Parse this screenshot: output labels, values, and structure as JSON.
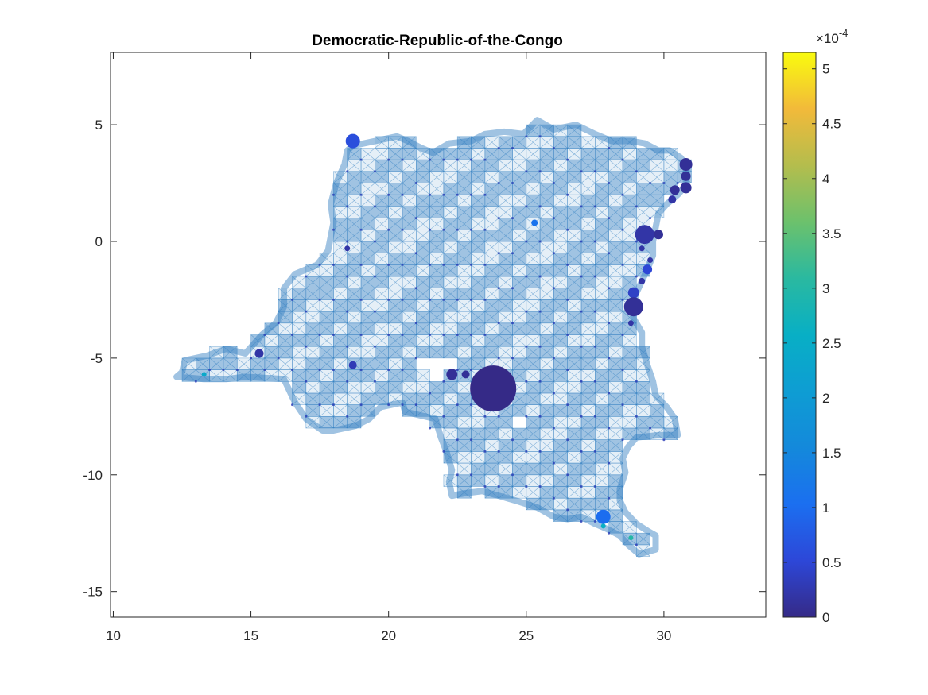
{
  "chart_data": {
    "type": "scatter",
    "title": "Democratic-Republic-of-the-Congo",
    "xlabel": "",
    "ylabel": "",
    "xlim": [
      9.9,
      33.7
    ],
    "ylim": [
      -16.1,
      8.1
    ],
    "xticks": [
      10,
      15,
      20,
      25,
      30
    ],
    "yticks": [
      5,
      0,
      -5,
      -10,
      -15
    ],
    "grid": false,
    "colorbar": {
      "min": 0,
      "max": 5.15,
      "ticks": [
        0,
        0.5,
        1,
        1.5,
        2,
        2.5,
        3,
        3.5,
        4,
        4.5,
        5
      ],
      "exponent_label": "×10",
      "exponent_power": "-4",
      "colormap": "parula"
    },
    "mesh": {
      "cell_size_deg": 0.5,
      "color": "#2c7bbf",
      "region_polygons": [
        [
          [
            18.7,
            4.1
          ],
          [
            19.5,
            4.3
          ],
          [
            20.3,
            4.5
          ],
          [
            20.7,
            4.3
          ],
          [
            21.2,
            4.0
          ],
          [
            21.6,
            3.8
          ],
          [
            22.2,
            4.2
          ],
          [
            23.0,
            4.3
          ],
          [
            23.5,
            4.6
          ],
          [
            24.2,
            4.7
          ],
          [
            24.9,
            4.6
          ],
          [
            25.4,
            5.2
          ],
          [
            26.0,
            4.8
          ],
          [
            26.8,
            5.0
          ],
          [
            27.5,
            4.6
          ],
          [
            28.1,
            4.3
          ],
          [
            28.8,
            4.3
          ],
          [
            29.3,
            4.2
          ],
          [
            29.8,
            3.9
          ],
          [
            30.2,
            3.9
          ],
          [
            30.6,
            3.6
          ],
          [
            30.8,
            3.3
          ],
          [
            30.8,
            2.4
          ],
          [
            30.5,
            2.0
          ],
          [
            30.1,
            1.6
          ],
          [
            29.8,
            1.2
          ],
          [
            29.7,
            0.6
          ],
          [
            29.6,
            0.0
          ],
          [
            29.6,
            -0.6
          ],
          [
            29.4,
            -1.2
          ],
          [
            29.2,
            -1.7
          ],
          [
            29.0,
            -2.2
          ],
          [
            28.9,
            -2.7
          ],
          [
            28.9,
            -3.3
          ],
          [
            29.2,
            -3.9
          ],
          [
            29.2,
            -4.5
          ],
          [
            29.4,
            -5.3
          ],
          [
            29.6,
            -6.0
          ],
          [
            29.7,
            -6.6
          ],
          [
            30.1,
            -7.1
          ],
          [
            30.4,
            -7.6
          ],
          [
            30.5,
            -8.3
          ],
          [
            29.8,
            -8.3
          ],
          [
            29.0,
            -8.4
          ],
          [
            28.7,
            -8.8
          ],
          [
            28.5,
            -9.3
          ],
          [
            28.6,
            -9.9
          ],
          [
            28.4,
            -10.6
          ],
          [
            28.4,
            -11.1
          ],
          [
            28.6,
            -11.6
          ],
          [
            29.0,
            -12.1
          ],
          [
            29.4,
            -12.4
          ],
          [
            29.7,
            -12.6
          ],
          [
            29.7,
            -13.2
          ],
          [
            29.1,
            -13.4
          ],
          [
            28.7,
            -13.0
          ],
          [
            28.4,
            -12.6
          ],
          [
            27.9,
            -12.3
          ],
          [
            27.5,
            -12.1
          ],
          [
            27.0,
            -11.8
          ],
          [
            26.5,
            -11.9
          ],
          [
            26.0,
            -11.8
          ],
          [
            25.4,
            -11.4
          ],
          [
            24.6,
            -11.1
          ],
          [
            24.0,
            -10.9
          ],
          [
            23.4,
            -10.7
          ],
          [
            22.7,
            -10.8
          ],
          [
            22.3,
            -10.9
          ],
          [
            22.2,
            -10.3
          ],
          [
            22.3,
            -9.8
          ],
          [
            22.1,
            -9.0
          ],
          [
            21.9,
            -8.4
          ],
          [
            21.7,
            -7.6
          ],
          [
            20.6,
            -7.3
          ],
          [
            20.5,
            -6.9
          ],
          [
            19.7,
            -7.1
          ],
          [
            19.3,
            -7.6
          ],
          [
            18.8,
            -7.9
          ],
          [
            18.0,
            -8.1
          ],
          [
            17.6,
            -8.1
          ],
          [
            17.0,
            -7.6
          ],
          [
            16.6,
            -6.9
          ],
          [
            16.2,
            -5.9
          ],
          [
            14.8,
            -5.8
          ],
          [
            14.1,
            -5.9
          ],
          [
            13.3,
            -5.9
          ],
          [
            12.3,
            -5.8
          ],
          [
            12.5,
            -5.6
          ],
          [
            12.6,
            -5.1
          ],
          [
            13.4,
            -4.9
          ],
          [
            14.1,
            -4.6
          ],
          [
            14.8,
            -4.8
          ],
          [
            15.4,
            -4.0
          ],
          [
            15.9,
            -3.5
          ],
          [
            16.2,
            -2.8
          ],
          [
            16.2,
            -2.0
          ],
          [
            16.6,
            -1.4
          ],
          [
            17.4,
            -1.0
          ],
          [
            17.8,
            -0.4
          ],
          [
            18.0,
            0.8
          ],
          [
            17.9,
            1.6
          ],
          [
            18.1,
            2.5
          ],
          [
            18.4,
            3.3
          ],
          [
            18.5,
            3.9
          ]
        ]
      ],
      "holes": [
        [
          [
            16.9,
            -4.6
          ],
          [
            17.3,
            -4.7
          ],
          [
            16.8,
            -4.9
          ]
        ],
        [
          [
            24.0,
            -6.0
          ],
          [
            24.9,
            -6.6
          ],
          [
            24.2,
            -7.2
          ],
          [
            23.6,
            -6.9
          ]
        ],
        [
          [
            24.8,
            -7.3
          ],
          [
            25.2,
            -7.1
          ],
          [
            25.0,
            -8.1
          ],
          [
            24.6,
            -7.9
          ]
        ],
        [
          [
            21.0,
            -4.6
          ],
          [
            21.6,
            -5.1
          ],
          [
            22.2,
            -4.9
          ],
          [
            22.5,
            -5.6
          ],
          [
            21.8,
            -6.0
          ],
          [
            21.0,
            -5.4
          ]
        ]
      ]
    },
    "points": [
      {
        "x": 23.8,
        "y": -6.3,
        "value": 0.0,
        "size": 58
      },
      {
        "x": 18.7,
        "y": 4.3,
        "value": 0.6,
        "size": 18
      },
      {
        "x": 30.8,
        "y": 3.3,
        "value": 0.1,
        "size": 16
      },
      {
        "x": 30.8,
        "y": 2.8,
        "value": 0.1,
        "size": 12
      },
      {
        "x": 30.8,
        "y": 2.3,
        "value": 0.1,
        "size": 14
      },
      {
        "x": 30.4,
        "y": 2.2,
        "value": 0.1,
        "size": 12
      },
      {
        "x": 30.3,
        "y": 1.8,
        "value": 0.2,
        "size": 10
      },
      {
        "x": 29.3,
        "y": 0.3,
        "value": 0.2,
        "size": 24
      },
      {
        "x": 29.8,
        "y": 0.3,
        "value": 0.1,
        "size": 12
      },
      {
        "x": 29.4,
        "y": -1.2,
        "value": 0.5,
        "size": 12
      },
      {
        "x": 28.9,
        "y": -2.2,
        "value": 0.4,
        "size": 14
      },
      {
        "x": 28.9,
        "y": -2.8,
        "value": 0.1,
        "size": 24
      },
      {
        "x": 22.3,
        "y": -5.7,
        "value": 0.1,
        "size": 14
      },
      {
        "x": 22.8,
        "y": -5.7,
        "value": 0.1,
        "size": 10
      },
      {
        "x": 15.3,
        "y": -4.8,
        "value": 0.2,
        "size": 11
      },
      {
        "x": 18.7,
        "y": -5.3,
        "value": 0.3,
        "size": 10
      },
      {
        "x": 27.8,
        "y": -11.8,
        "value": 1.0,
        "size": 18
      },
      {
        "x": 28.8,
        "y": -12.7,
        "value": 3.0,
        "size": 6
      },
      {
        "x": 27.8,
        "y": -12.2,
        "value": 2.6,
        "size": 6
      },
      {
        "x": 13.3,
        "y": -5.7,
        "value": 2.4,
        "size": 6
      },
      {
        "x": 25.3,
        "y": 0.8,
        "value": 1.1,
        "size": 8
      },
      {
        "x": 18.5,
        "y": -0.3,
        "value": 0.2,
        "size": 7
      },
      {
        "x": 29.2,
        "y": -1.7,
        "value": 0.2,
        "size": 8
      },
      {
        "x": 29.5,
        "y": -0.8,
        "value": 0.2,
        "size": 7
      },
      {
        "x": 29.2,
        "y": -0.3,
        "value": 0.2,
        "size": 7
      },
      {
        "x": 28.8,
        "y": -3.5,
        "value": 0.2,
        "size": 7
      }
    ]
  }
}
